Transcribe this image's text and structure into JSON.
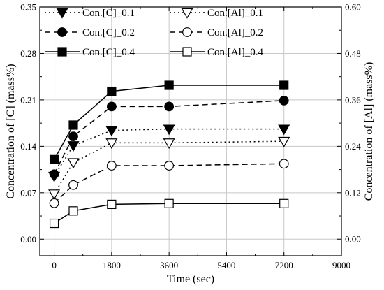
{
  "chart_data": {
    "type": "line",
    "xlabel": "Time (sec)",
    "ylabel_left": "Concentration of [C] (mass%)",
    "ylabel_right": "Concentration of [Al] (mass%)",
    "xlim": [
      -450,
      9000
    ],
    "x_ticks": [
      0,
      1800,
      3600,
      5400,
      7200,
      9000
    ],
    "ylim_left": [
      -0.025,
      0.35
    ],
    "y_ticks_left": [
      "0.00",
      "0.07",
      "0.14",
      "0.21",
      "0.28",
      "0.35"
    ],
    "ylim_right": [
      -0.0429,
      0.6
    ],
    "y_ticks_right": [
      "0.00",
      "0.12",
      "0.24",
      "0.36",
      "0.48",
      "0.60"
    ],
    "grid": true,
    "legend_position": "top-left",
    "x": [
      0,
      600,
      1800,
      3600,
      7200
    ],
    "series": [
      {
        "name": "Con.[C]_0.1",
        "axis": "left",
        "marker": "triangle-down-filled",
        "line": "dotted",
        "values": [
          0.095,
          0.141,
          0.164,
          0.166,
          0.166
        ]
      },
      {
        "name": "Con.[Al]_0.1",
        "axis": "right",
        "marker": "triangle-down-open",
        "line": "dotted",
        "values": [
          0.117,
          0.198,
          0.249,
          0.249,
          0.253
        ]
      },
      {
        "name": "Con.[C]_0.2",
        "axis": "left",
        "marker": "circle-filled",
        "line": "dashed",
        "values": [
          0.098,
          0.155,
          0.2,
          0.2,
          0.209
        ]
      },
      {
        "name": "Con.[Al]_0.2",
        "axis": "right",
        "marker": "circle-open",
        "line": "dashed",
        "values": [
          0.093,
          0.14,
          0.19,
          0.19,
          0.195
        ]
      },
      {
        "name": "Con.[C]_0.4",
        "axis": "left",
        "marker": "square-filled",
        "line": "solid",
        "values": [
          0.12,
          0.172,
          0.223,
          0.232,
          0.232
        ]
      },
      {
        "name": "Con.[Al]_0.4",
        "axis": "right",
        "marker": "square-open",
        "line": "solid",
        "values": [
          0.041,
          0.073,
          0.09,
          0.092,
          0.092
        ]
      }
    ]
  }
}
